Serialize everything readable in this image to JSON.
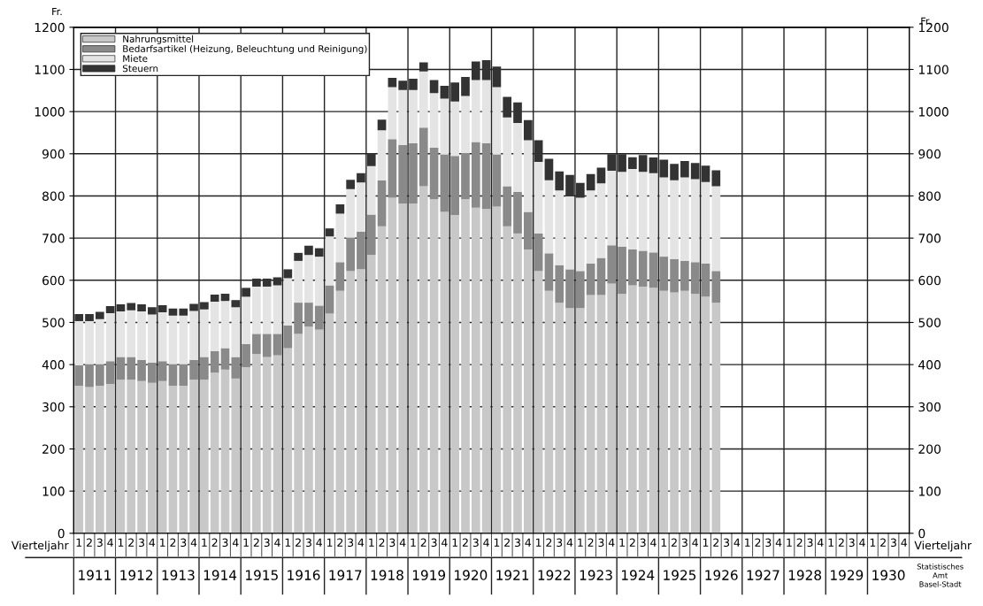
{
  "chart_data": {
    "type": "bar",
    "stacked": true,
    "categories": [
      "1",
      "2",
      "3",
      "4",
      "1",
      "2",
      "3",
      "4",
      "1",
      "2",
      "3",
      "4",
      "1",
      "2",
      "3",
      "4",
      "1",
      "2",
      "3",
      "4",
      "1",
      "2",
      "3",
      "4",
      "1",
      "2",
      "3",
      "4",
      "1",
      "2",
      "3",
      "4",
      "1",
      "2",
      "3",
      "4",
      "1",
      "2",
      "3",
      "4",
      "1",
      "2",
      "3",
      "4",
      "1",
      "2",
      "3",
      "4",
      "1",
      "2",
      "3",
      "4",
      "1",
      "2",
      "3",
      "4",
      "1",
      "2",
      "3",
      "4",
      "1",
      "2",
      "3",
      "4",
      "1",
      "2",
      "3",
      "4",
      "1",
      "2",
      "3",
      "4",
      "1",
      "2",
      "3",
      "4",
      "1",
      "2",
      "3",
      "4"
    ],
    "series": [
      {
        "name": "Nahrungsmittel",
        "color": "#c8c8c8",
        "values": [
          350,
          347,
          350,
          354,
          364,
          364,
          361,
          357,
          361,
          350,
          350,
          364,
          364,
          381,
          388,
          367,
          394,
          425,
          418,
          422,
          439,
          473,
          490,
          483,
          521,
          575,
          622,
          626,
          660,
          728,
          796,
          782,
          782,
          823,
          792,
          762,
          755,
          792,
          772,
          769,
          775,
          728,
          711,
          673,
          622,
          575,
          547,
          534,
          534,
          565,
          565,
          592,
          568,
          588,
          585,
          582,
          575,
          571,
          575,
          568,
          561,
          547,
          null,
          null,
          null,
          null,
          null,
          null,
          null,
          null,
          null,
          null,
          null,
          null,
          null,
          null,
          null,
          null,
          null,
          null
        ]
      },
      {
        "name": "Bedarfsartikel (Heizung, Beleuchtung und Reinigung)",
        "color": "#8a8a8a",
        "values": [
          48,
          54,
          51,
          54,
          54,
          54,
          50,
          48,
          47,
          51,
          51,
          47,
          54,
          51,
          51,
          51,
          55,
          48,
          55,
          51,
          54,
          74,
          57,
          57,
          67,
          68,
          79,
          89,
          96,
          109,
          139,
          139,
          143,
          139,
          123,
          136,
          140,
          109,
          156,
          156,
          123,
          95,
          99,
          89,
          89,
          89,
          89,
          92,
          88,
          75,
          88,
          91,
          112,
          85,
          85,
          84,
          81,
          79,
          71,
          75,
          79,
          75,
          null,
          null,
          null,
          null,
          null,
          null,
          null,
          null,
          null,
          null,
          null,
          null,
          null,
          null,
          null,
          null,
          null,
          null
        ]
      },
      {
        "name": "Miete",
        "color": "#e4e4e4",
        "values": [
          105,
          102,
          107,
          114,
          108,
          111,
          115,
          114,
          116,
          115,
          115,
          116,
          113,
          117,
          112,
          118,
          112,
          112,
          112,
          115,
          112,
          99,
          113,
          116,
          116,
          115,
          115,
          117,
          115,
          119,
          123,
          130,
          126,
          133,
          129,
          133,
          129,
          136,
          147,
          150,
          160,
          163,
          163,
          170,
          170,
          173,
          177,
          173,
          174,
          173,
          177,
          177,
          177,
          191,
          187,
          188,
          188,
          187,
          198,
          197,
          193,
          201,
          null,
          null,
          null,
          null,
          null,
          null,
          null,
          null,
          null,
          null,
          null,
          null,
          null,
          null,
          null,
          null,
          null,
          null
        ]
      },
      {
        "name": "Steuern",
        "color": "#333333",
        "values": [
          17,
          17,
          17,
          17,
          17,
          17,
          17,
          17,
          17,
          17,
          17,
          17,
          17,
          17,
          17,
          17,
          21,
          19,
          19,
          19,
          21,
          19,
          22,
          20,
          19,
          22,
          22,
          22,
          30,
          25,
          22,
          22,
          27,
          22,
          31,
          30,
          45,
          45,
          44,
          47,
          49,
          49,
          49,
          48,
          51,
          51,
          45,
          51,
          35,
          39,
          37,
          39,
          42,
          28,
          40,
          37,
          42,
          39,
          39,
          38,
          39,
          38,
          null,
          null,
          null,
          null,
          null,
          null,
          null,
          null,
          null,
          null,
          null,
          null,
          null,
          null,
          null,
          null,
          null,
          null
        ]
      }
    ],
    "xlabel": "Vierteljahr",
    "ylabel": "Fr.",
    "y2label": "Fr.",
    "ylim": [
      0,
      1200
    ],
    "yticks": [
      0,
      100,
      200,
      300,
      400,
      500,
      600,
      700,
      800,
      900,
      1000,
      1100,
      1200
    ],
    "y2lim": [
      0,
      1200
    ],
    "y2ticks": [
      0,
      100,
      200,
      300,
      400,
      500,
      600,
      700,
      800,
      900,
      1000,
      1100,
      1200
    ],
    "grid": true,
    "legend": "top left",
    "annotations": [
      "1911",
      "1912",
      "1913",
      "1914",
      "1915",
      "1916",
      "1917",
      "1918",
      "1919",
      "1920",
      "1921",
      "1922",
      "1923",
      "1924",
      "1925",
      "1926",
      "1927",
      "1928",
      "1929",
      "1930",
      "Statistisches\nAmt\nBasel-Stadt"
    ]
  }
}
